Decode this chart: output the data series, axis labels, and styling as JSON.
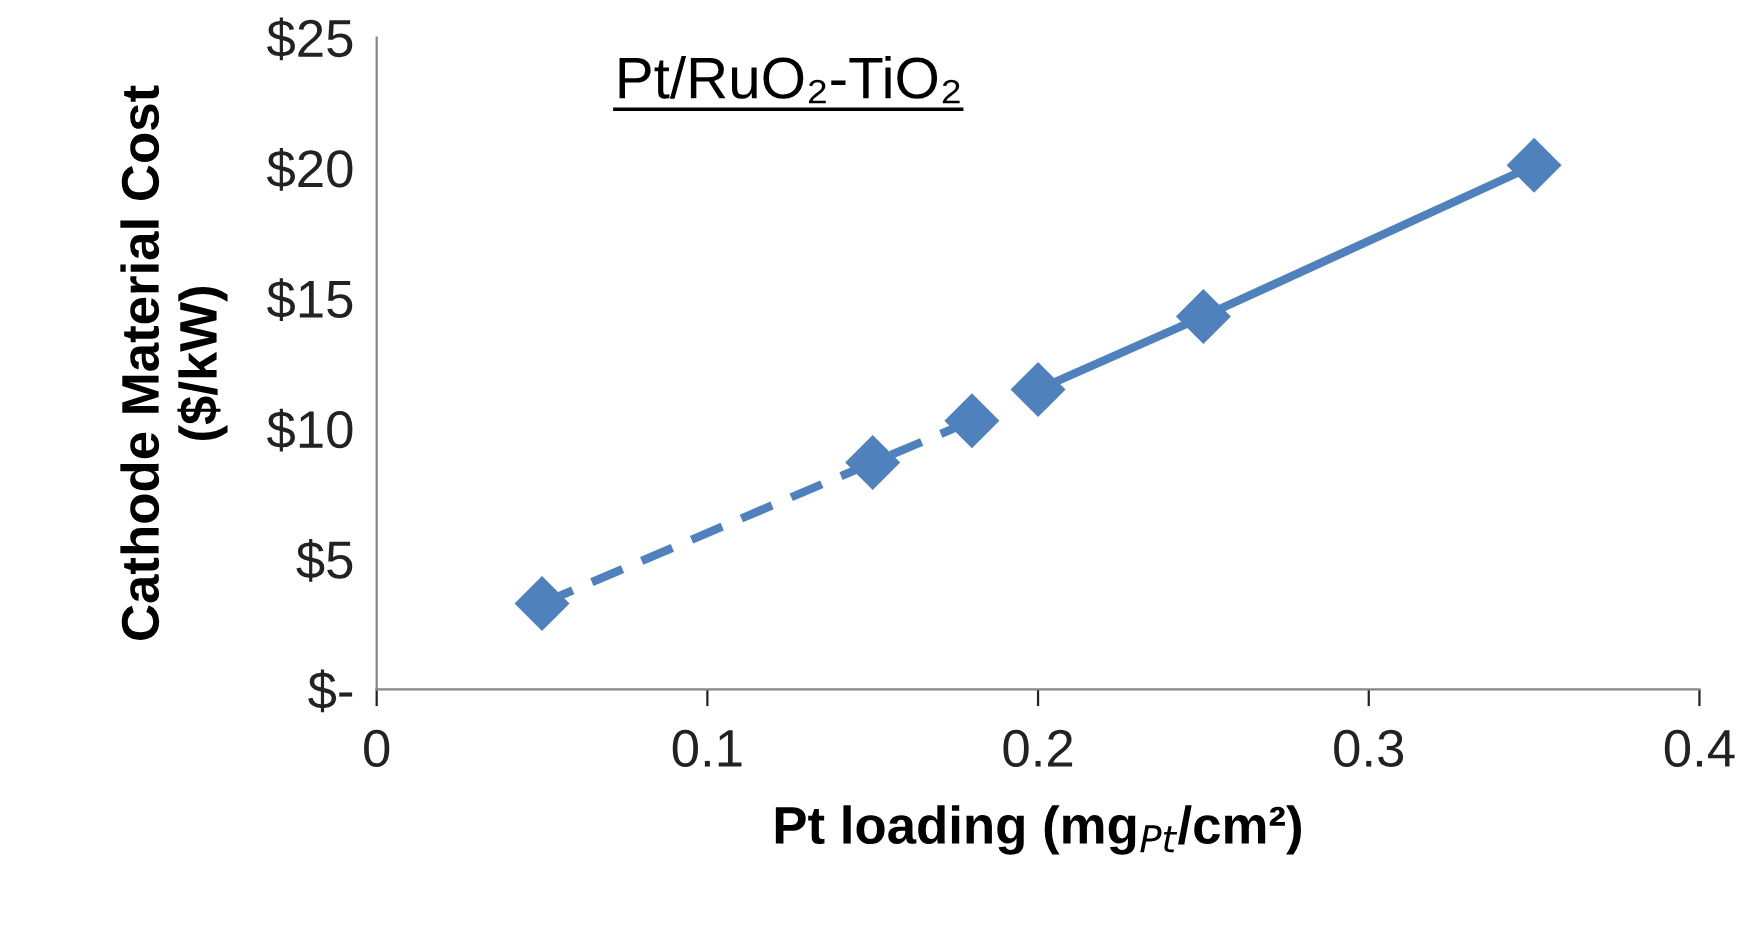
{
  "chart_data": {
    "type": "line",
    "title": "Pt/RuO₂-TiO₂",
    "xlabel": "Pt loading (mg$_{Pt}$/cm²)",
    "ylabel": "Cathode Material Cost\n($/kW)",
    "series": [
      {
        "color": "#4f81bd",
        "x": [
          0.05,
          0.15,
          0.18
        ],
        "values": [
          3.3,
          8.7,
          10.3
        ],
        "line_style": "dashed"
      },
      {
        "color": "#4f81bd",
        "x": [
          0.2,
          0.25,
          0.35
        ],
        "values": [
          11.5,
          14.3,
          20.1
        ],
        "line_style": "solid"
      }
    ],
    "marker": "diamond",
    "grid": false,
    "legend": false,
    "xlim": [
      0,
      0.4
    ],
    "xticks": [
      0,
      0.1,
      0.2,
      0.3,
      0.4
    ],
    "ylim": [
      0,
      25
    ],
    "yticks": [
      {
        "value": 0,
        "label": "$-"
      },
      {
        "value": 5,
        "label": "$5"
      },
      {
        "value": 10,
        "label": "$10"
      },
      {
        "value": 15,
        "label": "$15"
      },
      {
        "value": 20,
        "label": "$20"
      },
      {
        "value": 25,
        "label": "$25"
      }
    ]
  }
}
